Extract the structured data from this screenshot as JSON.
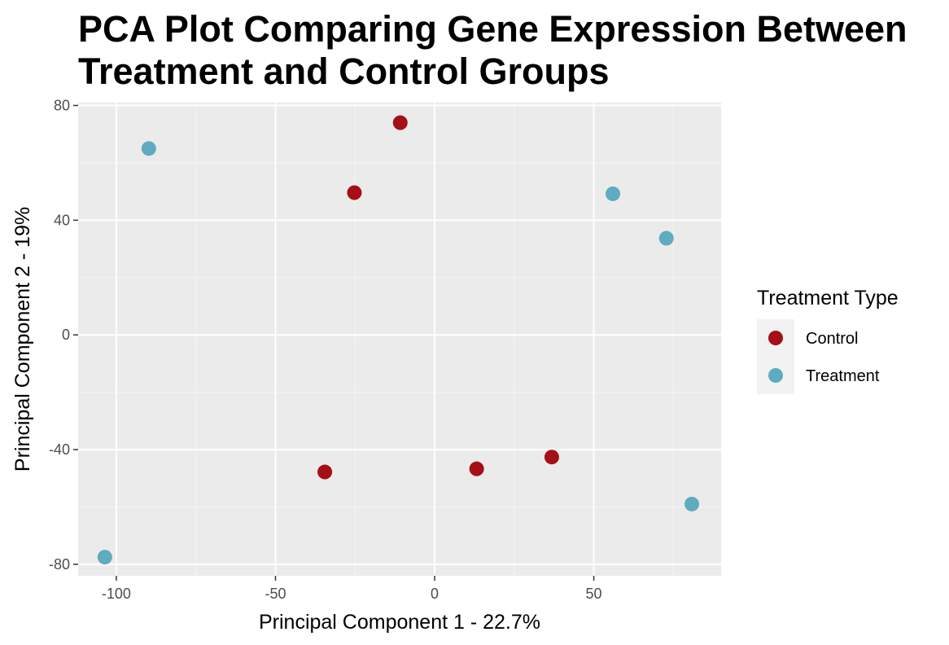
{
  "chart_data": {
    "type": "scatter",
    "title": "PCA Plot Comparing Gene Expression Between Treatment and Control Groups",
    "xlabel": "Principal Component 1 - 22.7%",
    "ylabel": "Principal Component 2 - 19%",
    "xlim": [
      -112,
      90
    ],
    "ylim": [
      -84,
      81
    ],
    "xticks": [
      -100,
      -50,
      0,
      50
    ],
    "yticks": [
      -80,
      -40,
      0,
      40,
      80
    ],
    "xtick_labels": [
      "-100",
      "-50",
      "0",
      "50"
    ],
    "ytick_labels": [
      "-80",
      "-40",
      "0",
      "40",
      "80"
    ],
    "grid": true,
    "legend_title": "Treatment Type",
    "legend_position": "right",
    "series": [
      {
        "name": "Control",
        "color": "#a50f15",
        "points": [
          {
            "x": -10.8,
            "y": 74.0
          },
          {
            "x": -25.2,
            "y": 49.6
          },
          {
            "x": -34.5,
            "y": -47.8
          },
          {
            "x": 13.2,
            "y": -46.7
          },
          {
            "x": 36.8,
            "y": -42.6
          }
        ]
      },
      {
        "name": "Treatment",
        "color": "#5fabc0",
        "points": [
          {
            "x": -89.8,
            "y": 65.0
          },
          {
            "x": 56.0,
            "y": 49.2
          },
          {
            "x": 72.8,
            "y": 33.7
          },
          {
            "x": 80.8,
            "y": -59.0
          },
          {
            "x": -103.6,
            "y": -77.5
          }
        ]
      }
    ]
  }
}
